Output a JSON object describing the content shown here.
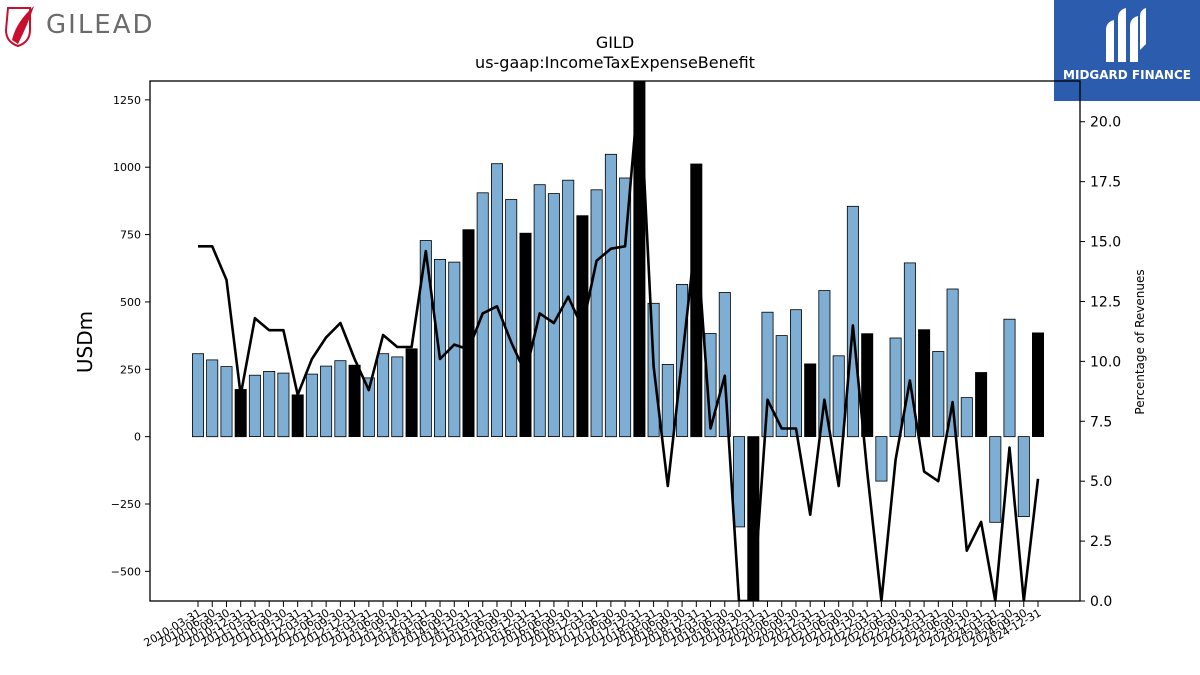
{
  "branding": {
    "left_logo_text": "GILEAD",
    "right_logo_text": "MIDGARD FINANCE"
  },
  "chart_data": {
    "type": "bar",
    "title": "GILD",
    "subtitle": "us-gaap:IncomeTaxExpenseBenefit",
    "ylabel": "USDm",
    "y2label": "Percentage of Revenues",
    "ylim": [
      -610,
      1320
    ],
    "y2lim": [
      0,
      21.7
    ],
    "yticks": [
      -500,
      -250,
      0,
      250,
      500,
      750,
      1000,
      1250
    ],
    "y2ticks": [
      0.0,
      2.5,
      5.0,
      7.5,
      10.0,
      12.5,
      15.0,
      17.5,
      20.0
    ],
    "ytick_labels": [
      "−500",
      "−250",
      "0",
      "250",
      "500",
      "750",
      "1000",
      "1250"
    ],
    "y2tick_labels": [
      "0.0",
      "2.5",
      "5.0",
      "7.5",
      "10.0",
      "12.5",
      "15.0",
      "17.5",
      "20.0"
    ],
    "colors": {
      "quarter_bar": "#7eaed3",
      "annual_bar": "#000000",
      "line": "#000000",
      "bar_edge": "#000000"
    },
    "categories": [
      "2010-03-31",
      "2010-06-30",
      "2010-09-30",
      "2010-12-31",
      "2011-03-31",
      "2011-06-30",
      "2011-09-30",
      "2011-12-31",
      "2012-03-31",
      "2012-06-30",
      "2012-09-30",
      "2012-12-31",
      "2013-03-31",
      "2013-06-30",
      "2013-09-30",
      "2013-12-31",
      "2014-03-31",
      "2014-06-30",
      "2014-09-30",
      "2014-12-31",
      "2015-03-31",
      "2015-06-30",
      "2015-09-30",
      "2015-12-31",
      "2016-03-31",
      "2016-06-30",
      "2016-09-30",
      "2016-12-31",
      "2017-03-31",
      "2017-06-30",
      "2017-09-30",
      "2017-12-31",
      "2018-03-31",
      "2018-06-30",
      "2018-09-30",
      "2018-12-31",
      "2019-03-31",
      "2019-06-30",
      "2019-09-30",
      "2019-12-31",
      "2020-03-31",
      "2020-06-30",
      "2020-09-30",
      "2020-12-31",
      "2021-03-31",
      "2021-06-30",
      "2021-09-30",
      "2021-12-31",
      "2022-03-31",
      "2022-06-30",
      "2022-09-30",
      "2022-12-31",
      "2023-03-31",
      "2023-06-30",
      "2023-09-30",
      "2023-12-31",
      "2024-03-31",
      "2024-06-30",
      "2024-09-30",
      "2024-12-31"
    ],
    "tick_labels": [
      "2010-03-31",
      "2010-06-30",
      "2010-09-30",
      "2010-12-31",
      "2011-03-31",
      "2011-06-30",
      "2011-09-30",
      "2011-12-31",
      "2012-03-31",
      "2012-06-30",
      "2012-09-30",
      "2012-12-31",
      "2013-03-31",
      "2013-06-30",
      "2013-09-30",
      "2013-12-31",
      "2014-03-31",
      "2014-06-30",
      "2014-09-30",
      "2014-12-31",
      "2015-03-31",
      "2015-06-30",
      "2015-09-30",
      "2015-12-31",
      "2016-03-31",
      "2016-06-30",
      "2016-09-30",
      "2016-12-31",
      "2017-03-31",
      "2017-06-30",
      "2017-09-30",
      "2017-12-31",
      "2018-03-31",
      "2018-06-30",
      "2018-09-30",
      "2018-12-31",
      "2019-03-31",
      "2019-06-30",
      "2019-09-30",
      "2019-12-31",
      "2020-03-31",
      "2020-06-30",
      "2020-09-30",
      "2020-12-31",
      "2021-03-31",
      "2021-06-30",
      "2021-09-30",
      "2021-12-31",
      "2022-03-31",
      "2022-06-30",
      "2022-09-30",
      "2022-12-31",
      "2023-03-31",
      "2023-06-30",
      "2023-09-30",
      "2023-12-31",
      "2024-03-31",
      "2024-06-30",
      "2024-09-30",
      "2024-12-31"
    ],
    "annual": [
      false,
      false,
      false,
      true,
      false,
      false,
      false,
      true,
      false,
      false,
      false,
      true,
      false,
      false,
      false,
      true,
      false,
      false,
      false,
      true,
      false,
      false,
      false,
      true,
      false,
      false,
      false,
      true,
      false,
      false,
      false,
      true,
      false,
      false,
      false,
      true,
      false,
      false,
      false,
      true,
      false,
      false,
      false,
      true,
      false,
      false,
      false,
      true,
      false,
      false,
      false,
      true,
      false,
      false,
      false,
      true,
      false,
      false,
      false,
      true
    ],
    "values": [
      308,
      285,
      260,
      175,
      228,
      242,
      236,
      155,
      232,
      262,
      282,
      265,
      218,
      308,
      296,
      326,
      728,
      658,
      648,
      768,
      905,
      1013,
      880,
      755,
      935,
      902,
      952,
      820,
      916,
      1048,
      960,
      1320,
      495,
      268,
      565,
      1012,
      383,
      535,
      -335,
      -610,
      462,
      375,
      471,
      270,
      542,
      300,
      855,
      382,
      -165,
      366,
      645,
      397,
      316,
      548,
      145,
      238,
      -318,
      436,
      -297,
      385
    ],
    "series": [
      {
        "name": "Percentage of Revenues",
        "axis": "right",
        "values": [
          14.8,
          14.8,
          13.4,
          8.6,
          11.8,
          11.3,
          11.3,
          8.6,
          10.1,
          11.0,
          11.6,
          10.1,
          8.8,
          11.1,
          10.6,
          10.6,
          14.6,
          10.1,
          10.7,
          10.5,
          12.0,
          12.3,
          10.8,
          9.5,
          12.0,
          11.6,
          12.7,
          11.4,
          14.2,
          14.7,
          14.8,
          21.7,
          9.8,
          4.8,
          10.1,
          15.4,
          7.2,
          9.4,
          0.0,
          0.0,
          8.4,
          7.2,
          7.2,
          3.6,
          8.4,
          4.8,
          11.5,
          5.4,
          0.0,
          5.9,
          9.2,
          5.4,
          5.0,
          8.3,
          2.1,
          3.3,
          0.0,
          6.4,
          0.0,
          5.1
        ]
      }
    ]
  }
}
